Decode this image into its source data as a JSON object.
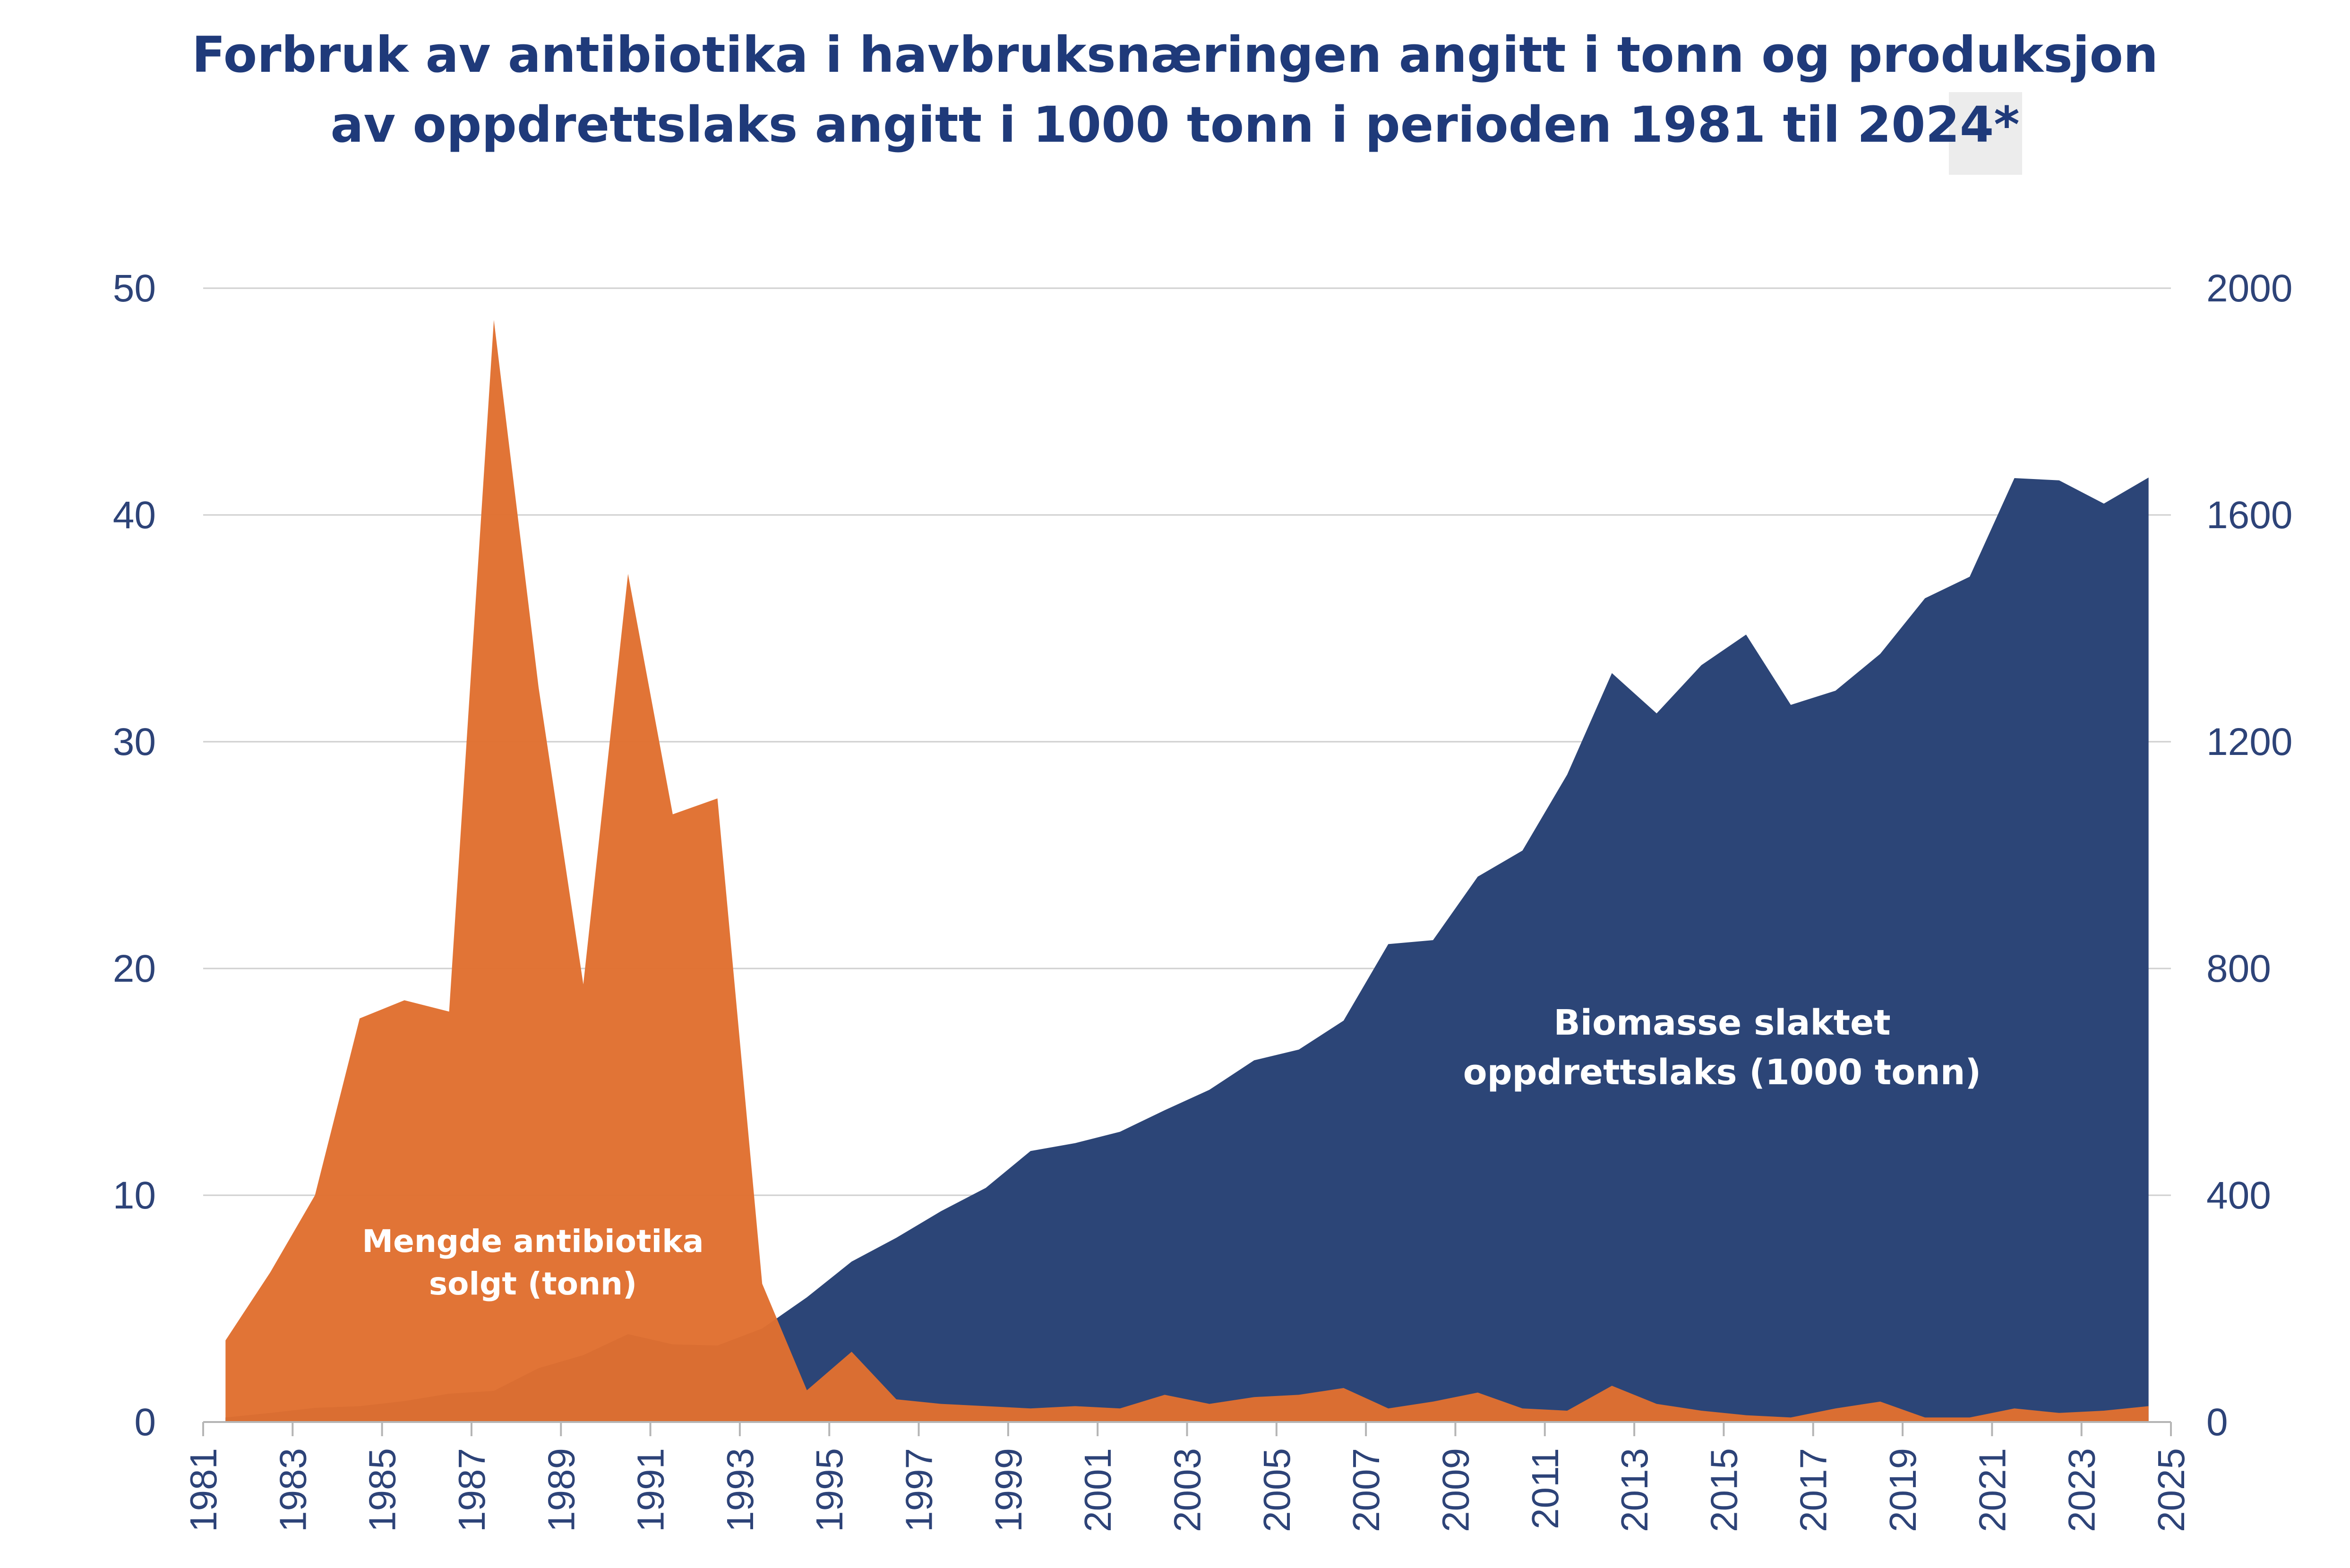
{
  "chart_data": {
    "type": "area",
    "title_lines": [
      "Forbruk av antibiotika i havbruksnæringen angitt i tonn og produksjon",
      "av oppdrettslaks angitt i 1000 tonn i perioden 1981 til 2024*"
    ],
    "x_ticks": [
      "1981",
      "1983",
      "1985",
      "1987",
      "1989",
      "1991",
      "1993",
      "1995",
      "1997",
      "1999",
      "2001",
      "2003",
      "2005",
      "2007",
      "2009",
      "2011",
      "2013",
      "2015",
      "2017",
      "2019",
      "2021",
      "2023",
      "2025"
    ],
    "y_left": {
      "min": 0,
      "max": 50,
      "ticks": [
        "0",
        "10",
        "20",
        "30",
        "40",
        "50"
      ]
    },
    "y_right": {
      "min": 0,
      "max": 2000,
      "ticks": [
        "0",
        "400",
        "800",
        "1200",
        "1600",
        "2000"
      ]
    },
    "grid": true,
    "series": [
      {
        "name": "Biomasse slaktet oppdrettslaks (1000 tonn)",
        "axis": "right",
        "color": "#2c4577",
        "x": [
          1981.5,
          1982.5,
          1983.5,
          1984.5,
          1985.5,
          1986.5,
          1987.5,
          1988.5,
          1989.5,
          1990.5,
          1991.5,
          1992.5,
          1993.5,
          1994.5,
          1995.5,
          1996.5,
          1997.5,
          1998.5,
          1999.5,
          2000.5,
          2001.5,
          2002.5,
          2003.5,
          2004.5,
          2005.5,
          2006.5,
          2007.5,
          2008.5,
          2009.5,
          2010.5,
          2011.5,
          2012.5,
          2013.5,
          2014.5,
          2015.5,
          2016.5,
          2017.5,
          2018.5,
          2019.5,
          2020.5,
          2021.5,
          2022.5,
          2023.5,
          2024.5
        ],
        "values": [
          8,
          16,
          25,
          28,
          37,
          50,
          55,
          95,
          118,
          155,
          137,
          135,
          165,
          220,
          283,
          325,
          372,
          413,
          478,
          492,
          512,
          550,
          586,
          638,
          657,
          708,
          843,
          850,
          962,
          1008,
          1142,
          1321,
          1250,
          1335,
          1389,
          1265,
          1290,
          1355,
          1453,
          1491,
          1665,
          1661,
          1620,
          1666
        ]
      },
      {
        "name": "Mengde antibiotika solgt (tonn)",
        "axis": "left",
        "color": "#e07030",
        "x": [
          1981.5,
          1982.5,
          1983.5,
          1984.5,
          1985.5,
          1986.5,
          1987.5,
          1988.5,
          1989.5,
          1990.5,
          1991.5,
          1992.5,
          1993.5,
          1994.5,
          1995.5,
          1996.5,
          1997.5,
          1998.5,
          1999.5,
          2000.5,
          2001.5,
          2002.5,
          2003.5,
          2004.5,
          2005.5,
          2006.5,
          2007.5,
          2008.5,
          2009.5,
          2010.5,
          2011.5,
          2012.5,
          2013.5,
          2014.5,
          2015.5,
          2016.5,
          2017.5,
          2018.5,
          2019.5,
          2020.5,
          2021.5,
          2022.5,
          2023.5,
          2024.5
        ],
        "values": [
          3.6,
          6.6,
          10.0,
          17.8,
          18.6,
          18.1,
          48.6,
          32.4,
          19.3,
          37.4,
          26.8,
          27.5,
          6.1,
          1.4,
          3.1,
          1.0,
          0.8,
          0.7,
          0.6,
          0.7,
          0.6,
          1.2,
          0.8,
          1.1,
          1.2,
          1.5,
          0.6,
          0.9,
          1.3,
          0.6,
          0.5,
          1.6,
          0.8,
          0.5,
          0.3,
          0.2,
          0.6,
          0.9,
          0.2,
          0.2,
          0.6,
          0.4,
          0.5,
          0.7
        ]
      }
    ],
    "annotations": {
      "antibiotics_label": [
        "Mengde antibiotika",
        "solgt (tonn)"
      ],
      "biomass_label": [
        "Biomasse slaktet",
        "oppdrettslaks (1000 tonn)"
      ]
    }
  }
}
